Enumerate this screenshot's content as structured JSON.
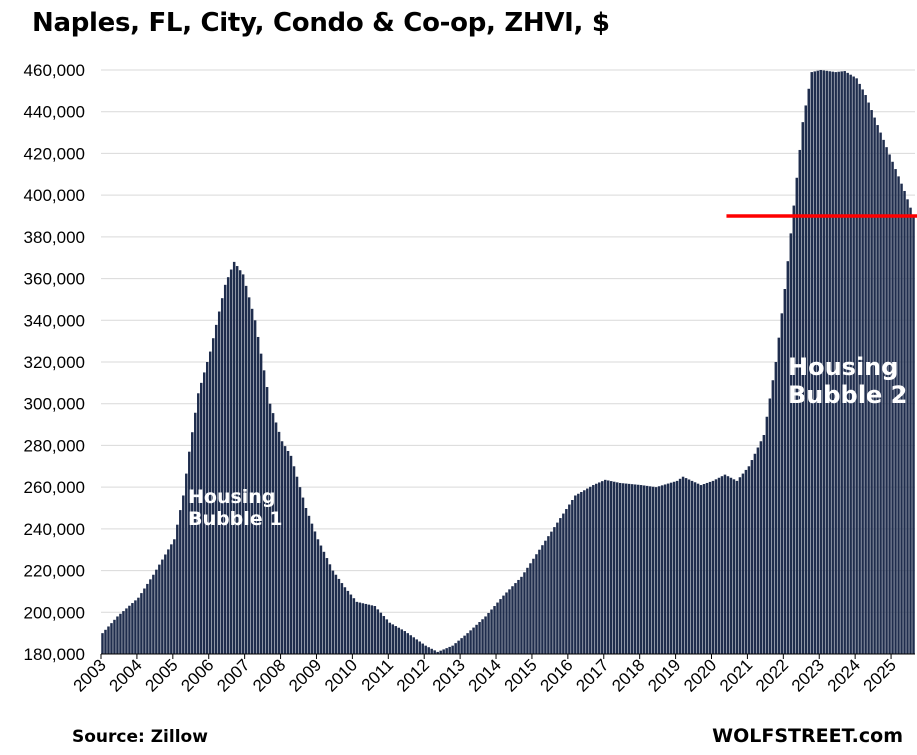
{
  "chart_data": {
    "type": "bar",
    "title": "Naples, FL, City, Condo & Co-op, ZHVI, $",
    "xlabel": "",
    "ylabel": "",
    "ylim": [
      180000,
      460000
    ],
    "yticks": [
      180000,
      200000,
      220000,
      240000,
      260000,
      280000,
      300000,
      320000,
      340000,
      360000,
      380000,
      400000,
      420000,
      440000,
      460000
    ],
    "ytick_labels": [
      "180,000",
      "200,000",
      "220,000",
      "240,000",
      "260,000",
      "280,000",
      "300,000",
      "320,000",
      "340,000",
      "360,000",
      "380,000",
      "400,000",
      "420,000",
      "440,000",
      "460,000"
    ],
    "xtick_labels": [
      "2003",
      "2004",
      "2005",
      "2006",
      "2007",
      "2008",
      "2009",
      "2010",
      "2011",
      "2012",
      "2013",
      "2014",
      "2015",
      "2016",
      "2017",
      "2018",
      "2019",
      "2020",
      "2021",
      "2022",
      "2023",
      "2024",
      "2025"
    ],
    "x_start": "2003-01",
    "x_end": "2025-08",
    "frequency": "monthly",
    "grid": true,
    "bar_color": "#1f2d4d",
    "keypoints": [
      [
        "2003-01",
        190000
      ],
      [
        "2003-06",
        198000
      ],
      [
        "2004-01",
        207000
      ],
      [
        "2004-06",
        218000
      ],
      [
        "2005-01",
        235000
      ],
      [
        "2005-04",
        256000
      ],
      [
        "2005-06",
        277000
      ],
      [
        "2005-09",
        305000
      ],
      [
        "2006-01",
        325000
      ],
      [
        "2006-06",
        357000
      ],
      [
        "2006-09",
        368000
      ],
      [
        "2006-12",
        362000
      ],
      [
        "2007-04",
        340000
      ],
      [
        "2007-09",
        300000
      ],
      [
        "2008-01",
        282000
      ],
      [
        "2008-04",
        275000
      ],
      [
        "2008-09",
        250000
      ],
      [
        "2009-01",
        235000
      ],
      [
        "2009-06",
        220000
      ],
      [
        "2009-10",
        212000
      ],
      [
        "2010-02",
        205000
      ],
      [
        "2010-08",
        203000
      ],
      [
        "2011-01",
        195000
      ],
      [
        "2011-06",
        191000
      ],
      [
        "2012-01",
        184000
      ],
      [
        "2012-05",
        181000
      ],
      [
        "2012-10",
        184000
      ],
      [
        "2013-03",
        190000
      ],
      [
        "2013-09",
        198000
      ],
      [
        "2014-03",
        208000
      ],
      [
        "2014-09",
        217000
      ],
      [
        "2015-03",
        230000
      ],
      [
        "2015-09",
        243000
      ],
      [
        "2016-03",
        256000
      ],
      [
        "2016-09",
        261000
      ],
      [
        "2017-01",
        263500
      ],
      [
        "2017-06",
        262000
      ],
      [
        "2018-01",
        261000
      ],
      [
        "2018-06",
        260000
      ],
      [
        "2019-01",
        263000
      ],
      [
        "2019-03",
        265000
      ],
      [
        "2019-09",
        261000
      ],
      [
        "2020-01",
        263000
      ],
      [
        "2020-05",
        266000
      ],
      [
        "2020-09",
        263000
      ],
      [
        "2021-01",
        270000
      ],
      [
        "2021-06",
        285000
      ],
      [
        "2021-10",
        320000
      ],
      [
        "2022-01",
        355000
      ],
      [
        "2022-04",
        395000
      ],
      [
        "2022-07",
        435000
      ],
      [
        "2022-10",
        459000
      ],
      [
        "2023-01",
        460000
      ],
      [
        "2023-06",
        459000
      ],
      [
        "2023-09",
        459500
      ],
      [
        "2024-01",
        456000
      ],
      [
        "2024-04",
        448000
      ],
      [
        "2024-09",
        430000
      ],
      [
        "2025-01",
        416000
      ],
      [
        "2025-05",
        402000
      ],
      [
        "2025-08",
        390000
      ]
    ],
    "reference_line": {
      "y": 390000,
      "x_from": "2020-06",
      "color": "#ff0000"
    },
    "annotations": [
      {
        "text": [
          "Housing",
          "Bubble 1"
        ]
      },
      {
        "text": [
          "Housing",
          "Bubble 2"
        ]
      }
    ]
  },
  "footer": {
    "source": "Source: Zillow",
    "brand": "WOLFSTREET.com"
  }
}
